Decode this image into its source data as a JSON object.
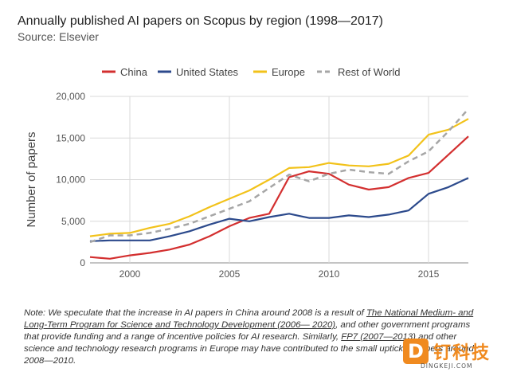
{
  "title": "Annually published AI papers on Scopus by region (1998—2017)",
  "subtitle": "Source: Elsevier",
  "note": {
    "p1": "Note: We speculate that the increase in AI papers in China around 2008 is a result of ",
    "link1": "The National Medium- and Long-Term Program for Science and Technology Development (2006— 2020)",
    "p2": ", and other government programs that provide funding and a range of incentive policies for AI research. Similarly, ",
    "link2": "FP7 (2007—2013)",
    "p3": " and other science and technology research programs in Europe may have contributed to the small uptick in papers around 2008—2010."
  },
  "logo": {
    "glyph": "D",
    "cn": "钉科技",
    "en": "DINGKEJI.COM",
    "color": "#f08a1f"
  },
  "chart_data": {
    "type": "line",
    "ylabel": "Number of papers",
    "xlabel": "",
    "xlim": [
      1998,
      2017
    ],
    "ylim": [
      0,
      20000
    ],
    "x_ticks": [
      2000,
      2005,
      2010,
      2015
    ],
    "x_tick_labels": [
      "2000",
      "2005",
      "2010",
      "2015"
    ],
    "y_ticks": [
      0,
      5000,
      10000,
      15000,
      20000
    ],
    "y_tick_labels": [
      "0",
      "5,000",
      "10,000",
      "15,000",
      "20,000"
    ],
    "grid": true,
    "legend_position": "top",
    "x": [
      1998,
      1999,
      2000,
      2001,
      2002,
      2003,
      2004,
      2005,
      2006,
      2007,
      2008,
      2009,
      2010,
      2011,
      2012,
      2013,
      2014,
      2015,
      2016,
      2017
    ],
    "series": [
      {
        "name": "China",
        "color": "#d32f2f",
        "dashed": false,
        "values": [
          700,
          500,
          900,
          1200,
          1600,
          2200,
          3200,
          4400,
          5400,
          5900,
          10300,
          11000,
          10700,
          9400,
          8800,
          9100,
          10200,
          10800,
          13000,
          15200
        ]
      },
      {
        "name": "United States",
        "color": "#2c4a8c",
        "dashed": false,
        "values": [
          2600,
          2700,
          2700,
          2700,
          3200,
          3800,
          4600,
          5300,
          5000,
          5500,
          5900,
          5400,
          5400,
          5700,
          5500,
          5800,
          6300,
          8300,
          9100,
          10200
        ]
      },
      {
        "name": "Europe",
        "color": "#f2c21a",
        "dashed": false,
        "values": [
          3200,
          3500,
          3600,
          4200,
          4700,
          5600,
          6700,
          7700,
          8700,
          10000,
          11400,
          11500,
          12000,
          11700,
          11600,
          11900,
          12900,
          15400,
          16000,
          17300
        ]
      },
      {
        "name": "Rest of World",
        "color": "#a6a6a6",
        "dashed": true,
        "values": [
          2500,
          3300,
          3300,
          3600,
          4100,
          4700,
          5600,
          6500,
          7400,
          9000,
          10600,
          9800,
          10700,
          11200,
          10900,
          10700,
          12200,
          13400,
          15800,
          18500
        ]
      }
    ]
  }
}
